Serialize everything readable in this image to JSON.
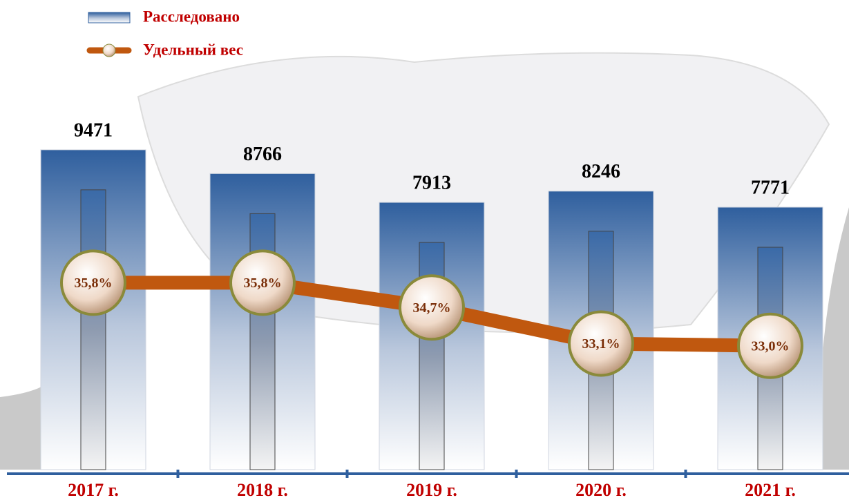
{
  "chart_data": {
    "type": "bar",
    "categories": [
      "2017 г.",
      "2018 г.",
      "2019 г.",
      "2020 г.",
      "2021 г."
    ],
    "series": [
      {
        "name": "Расследовано",
        "color": "#2f5f9e",
        "values": [
          9471,
          8766,
          7913,
          8246,
          7771
        ]
      },
      {
        "name": "Удельный вес",
        "type": "line",
        "axis": "y2",
        "color": "#c0580f",
        "values": [
          35.8,
          35.8,
          34.7,
          33.1,
          33.0
        ],
        "value_labels": [
          "35,8%",
          "35,8%",
          "34,7%",
          "33,1%",
          "33,0%"
        ]
      }
    ],
    "ylim": [
      0,
      10000
    ],
    "y2lim": [
      27.5,
      42.5
    ],
    "legend": "top-left"
  }
}
